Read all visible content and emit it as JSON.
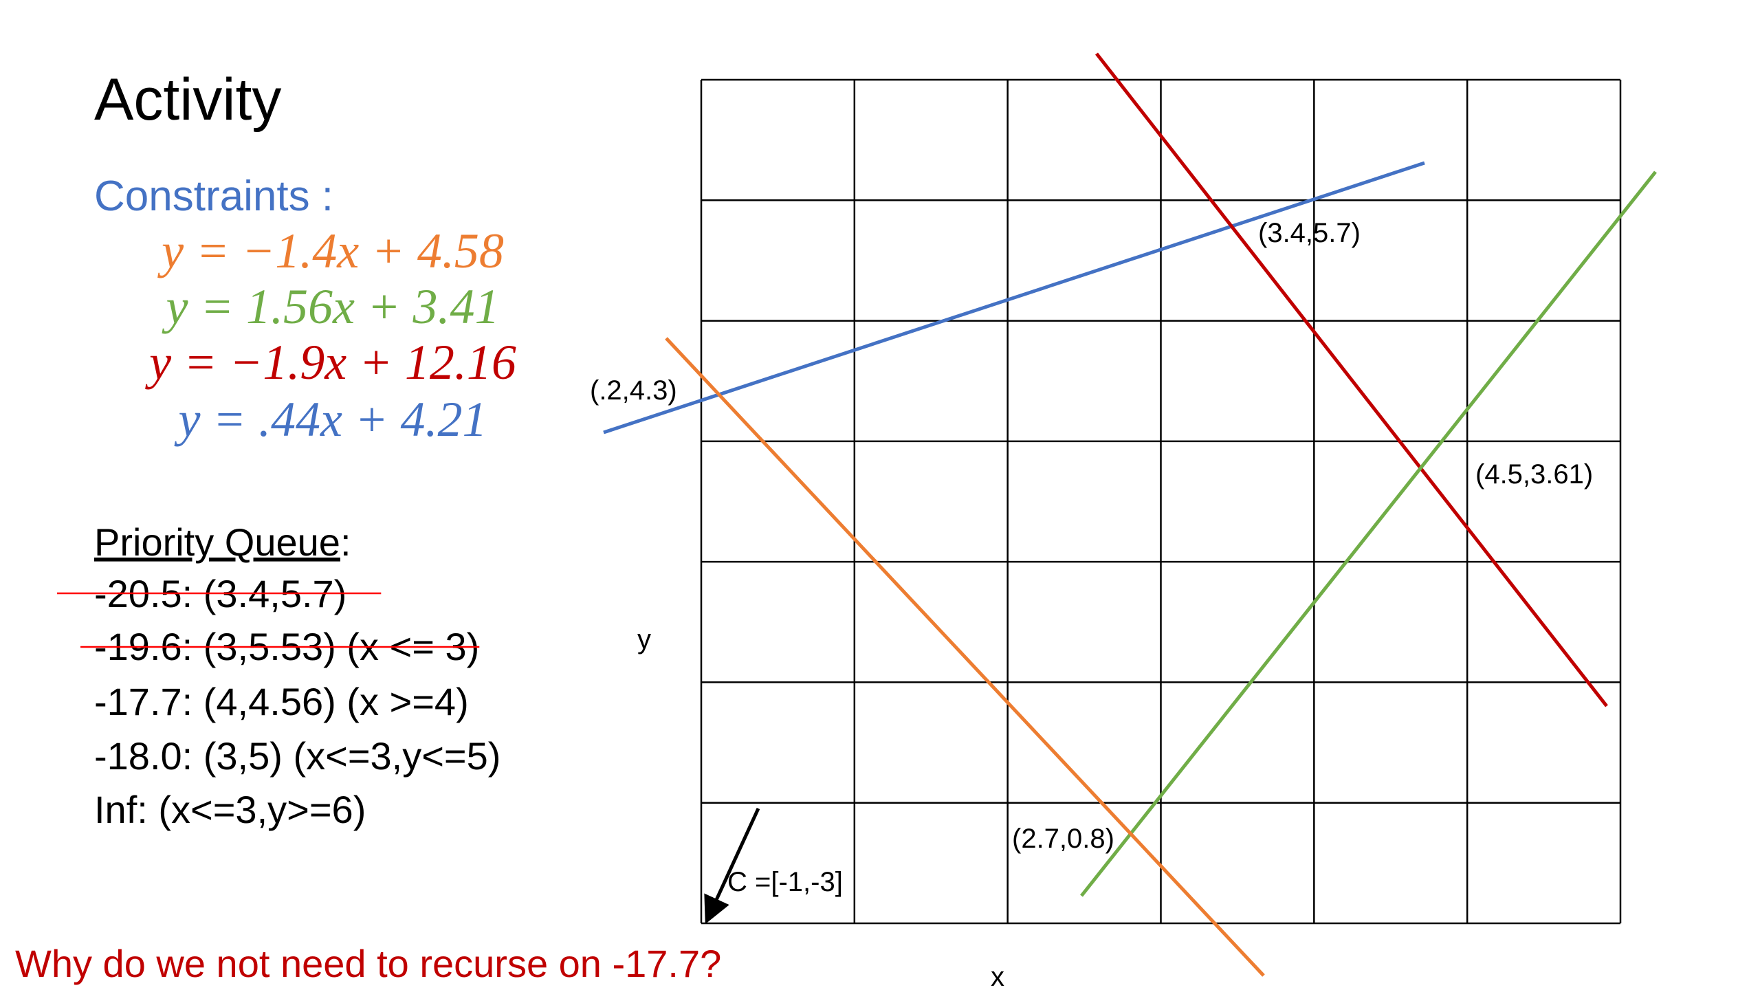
{
  "title": "Activity",
  "constraints": {
    "heading": "Constraints :",
    "heading_color": "#4472c4",
    "equations": [
      {
        "text": "y = −1.4x + 4.58",
        "color": "#ed7d31"
      },
      {
        "text": "y = 1.56x + 3.41",
        "color": "#70ad47"
      },
      {
        "text": "y = −1.9x + 12.16",
        "color": "#c00000"
      },
      {
        "text": "y =  .44x + 4.21",
        "color": "#4472c4"
      }
    ]
  },
  "priority_queue": {
    "heading": "Priority Queue",
    "heading_suffix": ":",
    "strike_color": "#ff0000",
    "items": [
      {
        "text": "-20.5: (3.4,5.7)",
        "struck": true
      },
      {
        "text": "-19.6: (3,5.53) (x <= 3)",
        "struck": true
      },
      {
        "text": "-17.7: (4,4.56) (x >=4)",
        "struck": false
      },
      {
        "text": "-18.0: (3,5) (x<=3,y<=5)",
        "struck": false
      },
      {
        "text": "Inf: (x<=3,y>=6)",
        "struck": false
      }
    ]
  },
  "question": {
    "text": "Why do we not need to recurse on -17.7?",
    "color": "#c00000"
  },
  "graph": {
    "x_label": "x",
    "y_label": "y",
    "vector_label": "C =[-1,-3]",
    "points": [
      "(3.4,5.7)",
      "(.2,4.3)",
      "(4.5,3.61)",
      "(2.7,0.8)"
    ]
  }
}
